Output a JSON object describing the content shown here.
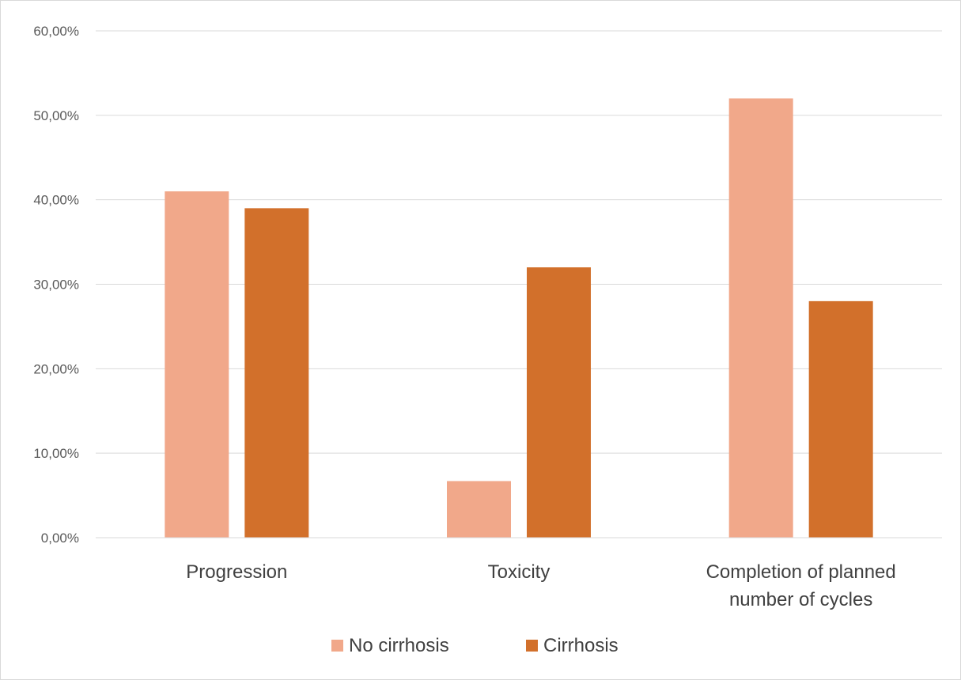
{
  "chart_data": {
    "type": "bar",
    "title": "",
    "xlabel": "",
    "ylabel": "",
    "categories": [
      [
        "Progression"
      ],
      [
        "Toxicity"
      ],
      [
        "Completion of planned",
        "number of cycles"
      ]
    ],
    "series": [
      {
        "name": "No cirrhosis",
        "color": "#f1a88a",
        "values": [
          41.0,
          6.7,
          52.0
        ]
      },
      {
        "name": "Cirrhosis",
        "color": "#d2702b",
        "values": [
          39.0,
          32.0,
          28.0
        ]
      }
    ],
    "ylim": [
      0,
      60
    ],
    "yticks": [
      0,
      10,
      20,
      30,
      40,
      50,
      60
    ],
    "ytick_labels": [
      "0,00%",
      "10,00%",
      "20,00%",
      "30,00%",
      "40,00%",
      "50,00%",
      "60,00%"
    ],
    "grid": true,
    "legend_position": "bottom"
  }
}
